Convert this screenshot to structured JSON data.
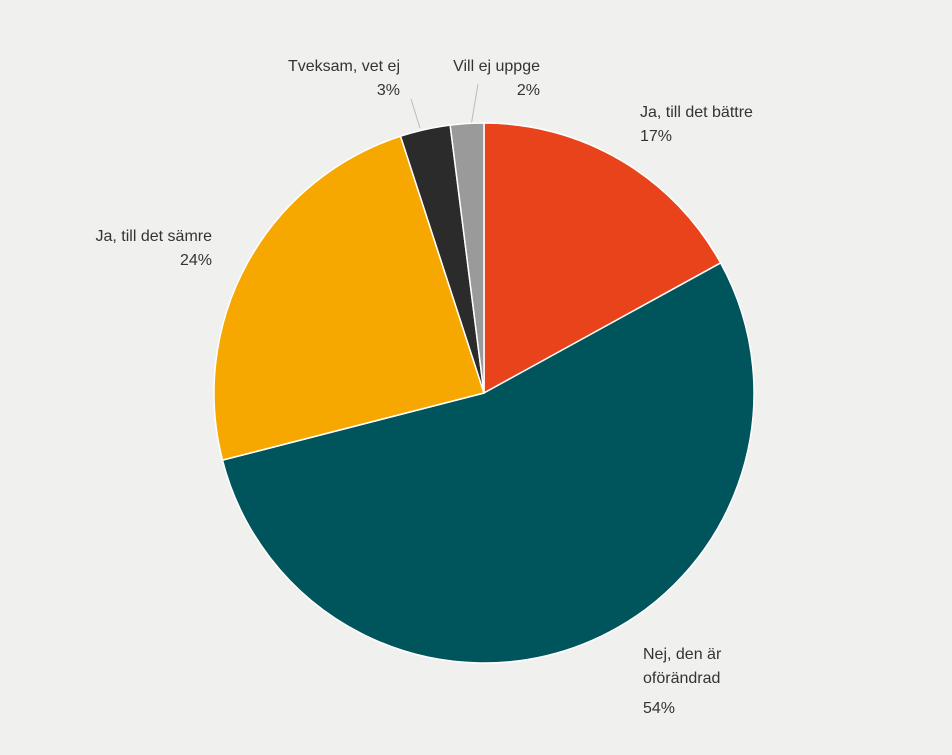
{
  "chart_data": {
    "type": "pie",
    "categories": [
      "Ja, till det bättre",
      "Nej, den är oförändrad",
      "Ja, till det sämre",
      "Tveksam, vet ej",
      "Vill ej uppge"
    ],
    "values": [
      17,
      54,
      24,
      3,
      2
    ],
    "value_labels": [
      "17%",
      "54%",
      "24%",
      "3%",
      "2%"
    ],
    "colors": [
      "#e8431a",
      "#00545c",
      "#f7a800",
      "#2b2b2b",
      "#9a9a9a"
    ]
  }
}
